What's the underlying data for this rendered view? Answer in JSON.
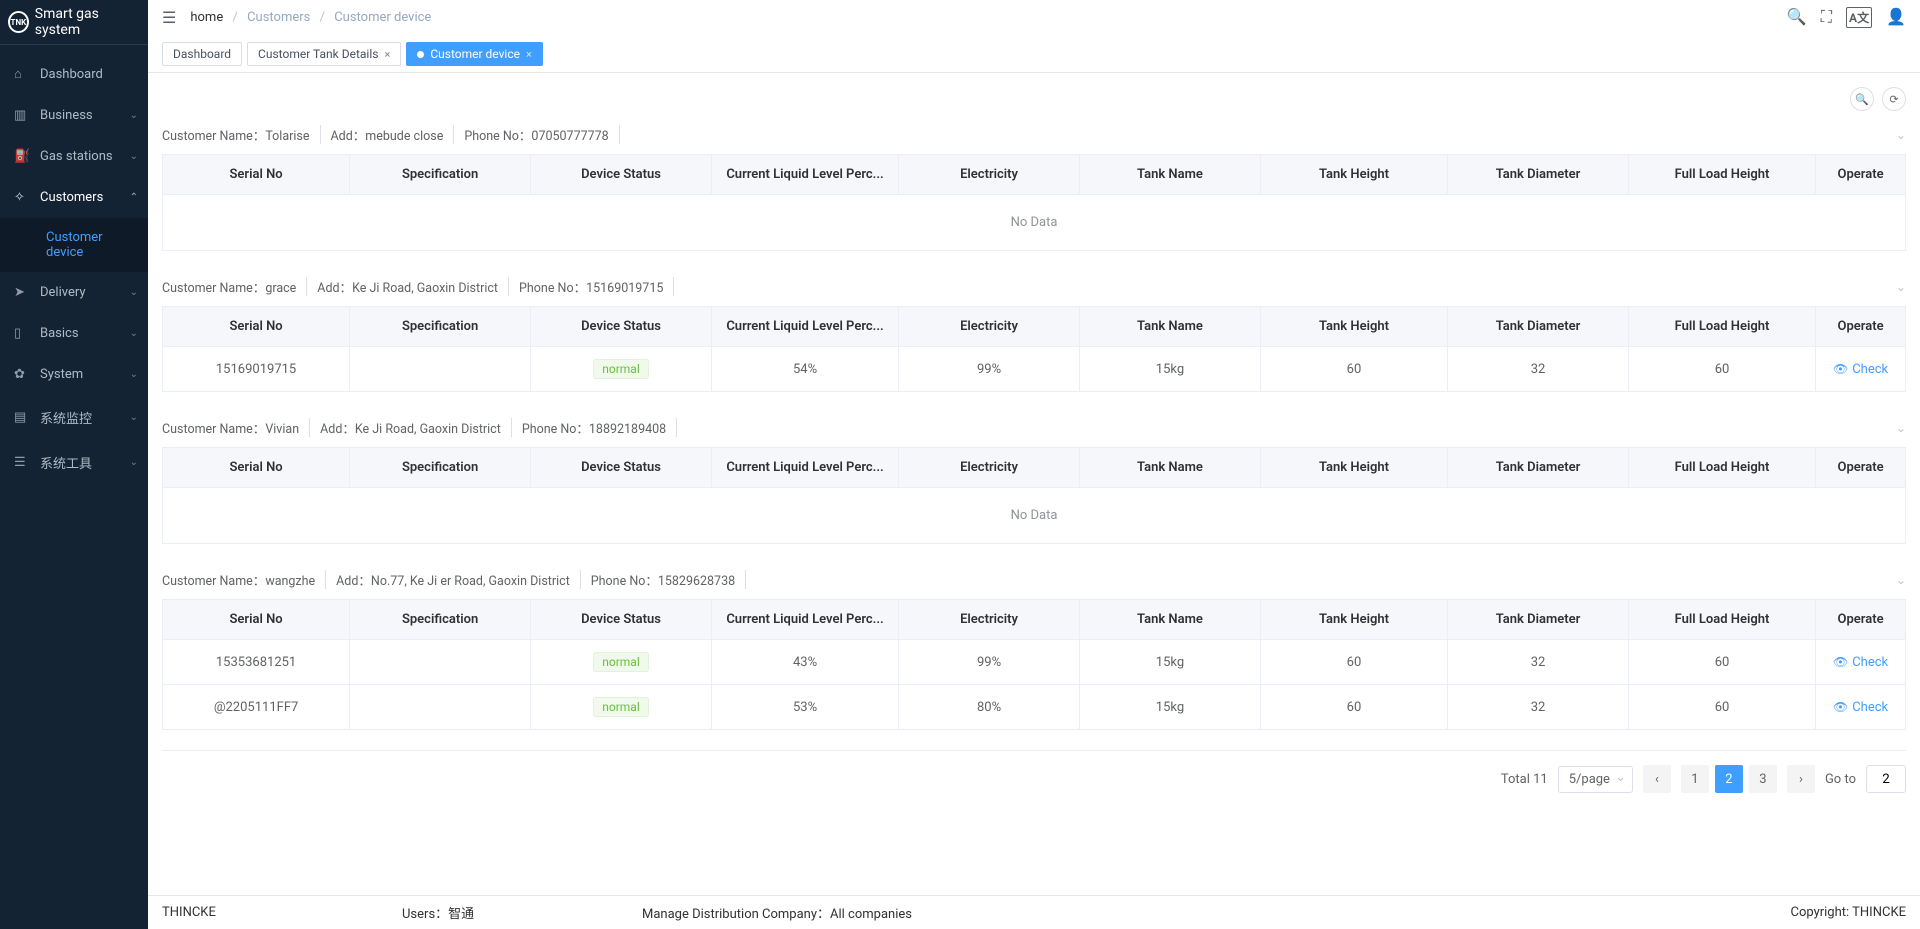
{
  "brand": {
    "badge": "TNK",
    "title": "Smart gas system"
  },
  "sidebar": {
    "items": [
      {
        "icon": "⌂",
        "label": "Dashboard",
        "expandable": false
      },
      {
        "icon": "▥",
        "label": "Business",
        "expandable": true
      },
      {
        "icon": "⛽",
        "label": "Gas stations",
        "expandable": true
      },
      {
        "icon": "✧",
        "label": "Customers",
        "expandable": true,
        "active": true,
        "open": true,
        "children": [
          {
            "icon": "</>",
            "label": "Customer device"
          }
        ]
      },
      {
        "icon": "➤",
        "label": "Delivery",
        "expandable": true
      },
      {
        "icon": "▯",
        "label": "Basics",
        "expandable": true
      },
      {
        "icon": "✿",
        "label": "System",
        "expandable": true
      },
      {
        "icon": "▤",
        "label": "系统监控",
        "expandable": true
      },
      {
        "icon": "☰",
        "label": "系统工具",
        "expandable": true
      }
    ]
  },
  "breadcrumb": {
    "home": "home",
    "items": [
      "Customers",
      "Customer device"
    ]
  },
  "tabs": [
    {
      "label": "Dashboard",
      "active": false,
      "closable": false
    },
    {
      "label": "Customer Tank Details",
      "active": false,
      "closable": true
    },
    {
      "label": "Customer device",
      "active": true,
      "closable": true
    }
  ],
  "labels": {
    "customerName": "Customer Name：",
    "add": "Add：",
    "phone": "Phone No：",
    "noData": "No Data",
    "check": "Check",
    "total": "Total",
    "goTo": "Go to"
  },
  "columns": [
    "Serial No",
    "Specification",
    "Device Status",
    "Current Liquid Level Perc...",
    "Electricity",
    "Tank Name",
    "Tank Height",
    "Tank Diameter",
    "Full Load Height",
    "Operate"
  ],
  "customers": [
    {
      "name": "Tolarise",
      "address": "mebude close",
      "phone": "07050777778",
      "rows": []
    },
    {
      "name": "grace",
      "address": "Ke Ji Road, Gaoxin District",
      "phone": "15169019715",
      "rows": [
        {
          "serial": "15169019715",
          "spec": "",
          "status": "normal",
          "liquid": "54%",
          "electricity": "99%",
          "tankName": "15kg",
          "tankHeight": "60",
          "tankDiameter": "32",
          "fullLoad": "60"
        }
      ]
    },
    {
      "name": "Vivian",
      "address": "Ke Ji Road, Gaoxin District",
      "phone": "18892189408",
      "rows": []
    },
    {
      "name": "wangzhe",
      "address": "No.77, Ke Ji er Road, Gaoxin District",
      "phone": "15829628738",
      "rows": [
        {
          "serial": "15353681251",
          "spec": "",
          "status": "normal",
          "liquid": "43%",
          "electricity": "99%",
          "tankName": "15kg",
          "tankHeight": "60",
          "tankDiameter": "32",
          "fullLoad": "60"
        },
        {
          "serial": "@2205111FF7",
          "spec": "",
          "status": "normal",
          "liquid": "53%",
          "electricity": "80%",
          "tankName": "15kg",
          "tankHeight": "60",
          "tankDiameter": "32",
          "fullLoad": "60"
        }
      ]
    }
  ],
  "pagination": {
    "total": 11,
    "perPage": "5/page",
    "pages": [
      1,
      2,
      3
    ],
    "current": 2,
    "gotoValue": "2"
  },
  "footer": {
    "company": "THINCKE",
    "usersLabel": "Users：",
    "usersValue": "智通",
    "distLabel": "Manage Distribution Company：",
    "distValue": "All companies",
    "copyright": "Copyright: THINCKE"
  },
  "colors": {
    "accent": "#409eff",
    "sidebarBg": "#142334",
    "success": "#67c23a"
  }
}
